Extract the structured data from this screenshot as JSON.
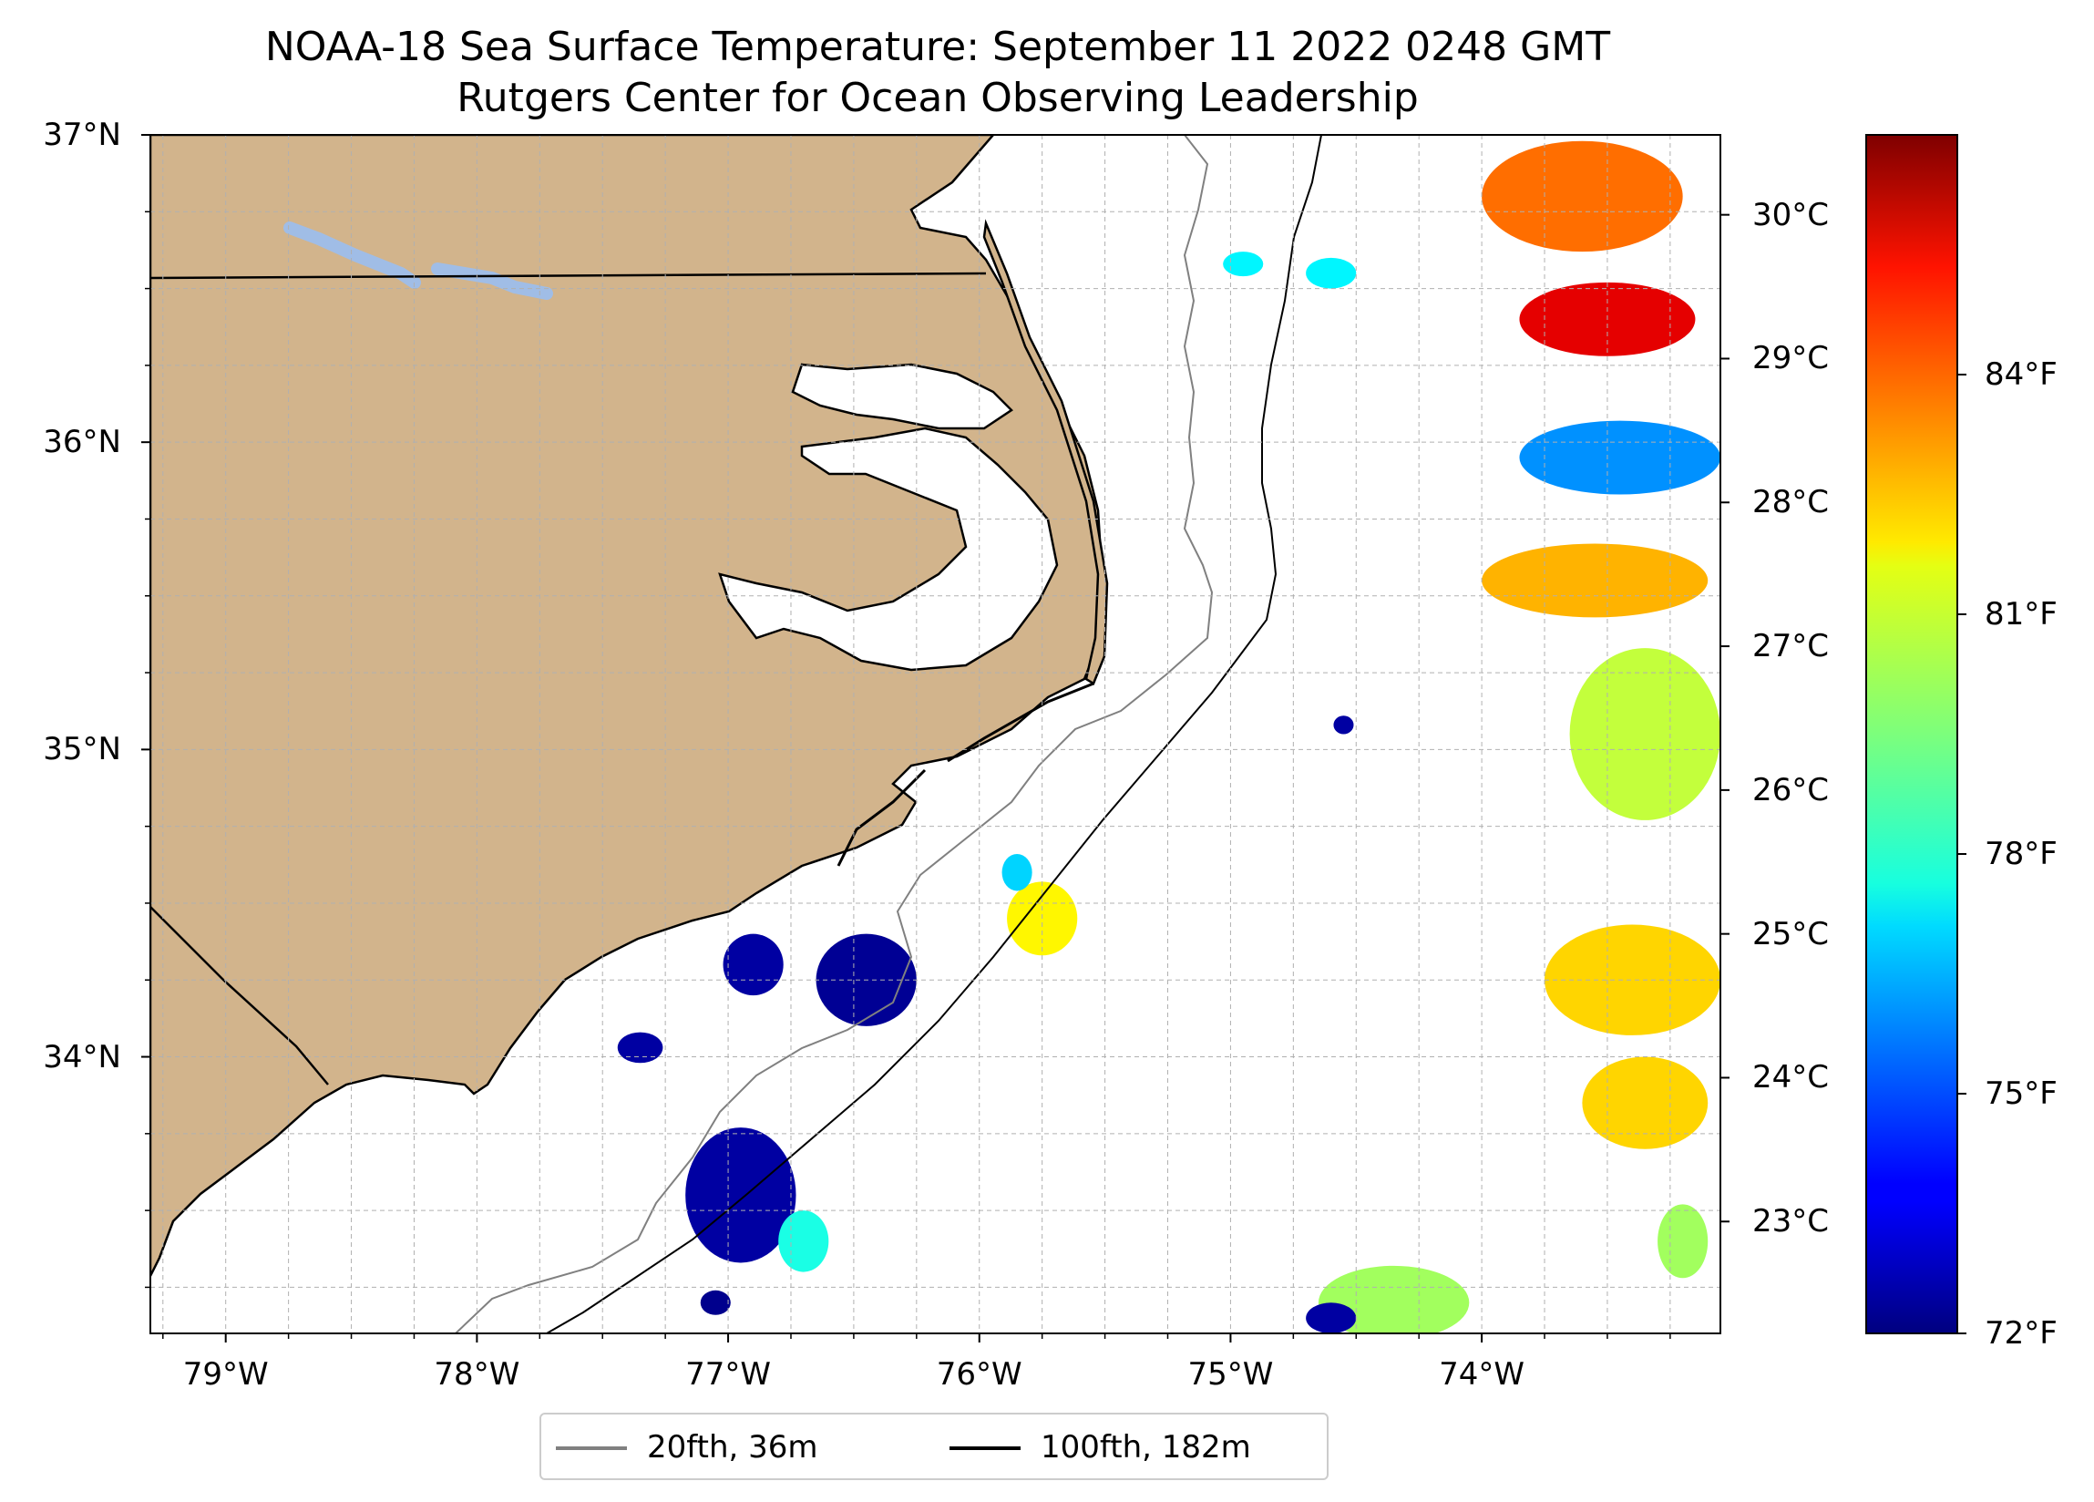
{
  "title": {
    "line1": "NOAA-18 Sea Surface Temperature: September 11 2022 0248 GMT",
    "line2": "Rutgers Center for Ocean Observing Leadership"
  },
  "map": {
    "extent": {
      "lon_min": -79.3,
      "lon_max": -73.05,
      "lat_min": 33.1,
      "lat_max": 37.0
    },
    "gridlines": {
      "style": "dashed",
      "color": "#b0b0b0"
    },
    "land_color": "#d2b48c",
    "lake_color": "#a0bde6",
    "ocean_color": "#ffffff",
    "lat_labels": [
      "37°N",
      "36°N",
      "35°N",
      "34°N"
    ],
    "lat_values": [
      37,
      36,
      35,
      34
    ],
    "lon_labels": [
      "79°W",
      "78°W",
      "77°W",
      "76°W",
      "75°W",
      "74°W"
    ],
    "lon_values": [
      -79,
      -78,
      -77,
      -76,
      -75,
      -74
    ]
  },
  "colorbar": {
    "colormap": "jet",
    "celsius_labels": [
      "30°C",
      "29°C",
      "28°C",
      "27°C",
      "26°C",
      "25°C",
      "24°C",
      "23°C"
    ],
    "celsius_values": [
      30,
      29,
      28,
      27,
      26,
      25,
      24,
      23
    ],
    "fahrenheit_labels": [
      "84°F",
      "81°F",
      "78°F",
      "75°F",
      "72°F"
    ],
    "fahrenheit_values": [
      84,
      81,
      78,
      75,
      72
    ],
    "range_f": [
      72,
      87
    ]
  },
  "legend": {
    "items": [
      {
        "label": "20fth, 36m",
        "color": "#808080"
      },
      {
        "label": "100fth, 182m",
        "color": "#000000"
      }
    ]
  },
  "sst_patches": [
    {
      "lon": -76.95,
      "lat": 33.55,
      "rx": 0.22,
      "ry": 0.22,
      "t": 72.5
    },
    {
      "lon": -76.7,
      "lat": 33.4,
      "rx": 0.1,
      "ry": 0.1,
      "t": 78
    },
    {
      "lon": -76.45,
      "lat": 34.25,
      "rx": 0.2,
      "ry": 0.15,
      "t": 72.3
    },
    {
      "lon": -76.9,
      "lat": 34.3,
      "rx": 0.12,
      "ry": 0.1,
      "t": 72.5
    },
    {
      "lon": -77.35,
      "lat": 34.03,
      "rx": 0.09,
      "ry": 0.05,
      "t": 72.5
    },
    {
      "lon": -77.05,
      "lat": 33.2,
      "rx": 0.06,
      "ry": 0.04,
      "t": 72.2
    },
    {
      "lon": -75.75,
      "lat": 34.45,
      "rx": 0.14,
      "ry": 0.12,
      "t": 81.5
    },
    {
      "lon": -75.85,
      "lat": 34.6,
      "rx": 0.06,
      "ry": 0.06,
      "t": 77
    },
    {
      "lon": -73.6,
      "lat": 36.8,
      "rx": 0.4,
      "ry": 0.18,
      "t": 83.5
    },
    {
      "lon": -73.5,
      "lat": 36.4,
      "rx": 0.35,
      "ry": 0.12,
      "t": 85.5
    },
    {
      "lon": -73.45,
      "lat": 35.95,
      "rx": 0.4,
      "ry": 0.12,
      "t": 76
    },
    {
      "lon": -73.55,
      "lat": 35.55,
      "rx": 0.45,
      "ry": 0.12,
      "t": 82.5
    },
    {
      "lon": -73.35,
      "lat": 35.05,
      "rx": 0.3,
      "ry": 0.28,
      "t": 80.5
    },
    {
      "lon": -73.4,
      "lat": 34.25,
      "rx": 0.35,
      "ry": 0.18,
      "t": 82
    },
    {
      "lon": -73.35,
      "lat": 33.85,
      "rx": 0.25,
      "ry": 0.15,
      "t": 82
    },
    {
      "lon": -74.35,
      "lat": 33.2,
      "rx": 0.3,
      "ry": 0.12,
      "t": 80
    },
    {
      "lon": -74.6,
      "lat": 33.15,
      "rx": 0.1,
      "ry": 0.05,
      "t": 72.5
    },
    {
      "lon": -73.2,
      "lat": 33.4,
      "rx": 0.1,
      "ry": 0.12,
      "t": 80
    },
    {
      "lon": -74.95,
      "lat": 36.58,
      "rx": 0.08,
      "ry": 0.04,
      "t": 77.5
    },
    {
      "lon": -74.6,
      "lat": 36.55,
      "rx": 0.1,
      "ry": 0.05,
      "t": 77.5
    },
    {
      "lon": -74.55,
      "lat": 35.08,
      "rx": 0.04,
      "ry": 0.03,
      "t": 72.5
    }
  ]
}
